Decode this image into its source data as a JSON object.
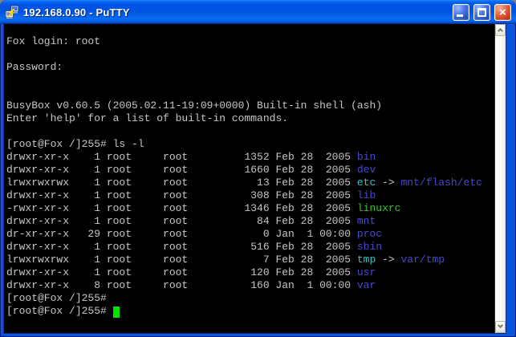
{
  "window": {
    "title": "192.168.0.90 - PuTTY",
    "icon_name": "putty-terminals-icon",
    "controls": [
      {
        "name": "minimize",
        "icon": "minimize-icon"
      },
      {
        "name": "maximize",
        "icon": "maximize-icon"
      },
      {
        "name": "close",
        "icon": "close-icon"
      }
    ]
  },
  "colors": {
    "terminal_bg": "#000000",
    "terminal_fg": "#C6C6C6",
    "directory_blue": "#4A4AC9",
    "symlink_cyan": "#40BFBF",
    "executable_green": "#3DBE3D",
    "cursor_green": "#00E400",
    "frame_blue": "#0855DD",
    "scrollbar_track": "#FBFAF7"
  },
  "scrollbar": {
    "up_icon": "chevron-up-icon",
    "down_icon": "chevron-down-icon"
  },
  "terminal": {
    "lines": [
      [
        [
          "Fox login: root",
          "fg"
        ]
      ],
      [],
      [
        [
          "Password:",
          "fg"
        ]
      ],
      [],
      [],
      [
        [
          "BusyBox v0.60.5 (2005.02.11-19:09+0000) Built-in shell (ash)",
          "fg"
        ]
      ],
      [
        [
          "Enter 'help' for a list of built-in commands.",
          "fg"
        ]
      ],
      [],
      [
        [
          "[root@Fox /]255# ls -l",
          "fg"
        ]
      ],
      [
        [
          "drwxr-xr-x    1 root     root         1352 Feb 28  2005 ",
          "fg"
        ],
        [
          "bin",
          "dir"
        ]
      ],
      [
        [
          "drwxr-xr-x    1 root     root         1660 Feb 28  2005 ",
          "fg"
        ],
        [
          "dev",
          "dir"
        ]
      ],
      [
        [
          "lrwxrwxrwx    1 root     root           13 Feb 28  2005 ",
          "fg"
        ],
        [
          "etc",
          "link"
        ],
        [
          " -> ",
          "fg"
        ],
        [
          "mnt/flash/etc",
          "dir"
        ]
      ],
      [
        [
          "drwxr-xr-x    1 root     root          308 Feb 28  2005 ",
          "fg"
        ],
        [
          "lib",
          "dir"
        ]
      ],
      [
        [
          "-rwxr-xr-x    1 root     root         1346 Feb 28  2005 ",
          "fg"
        ],
        [
          "linuxrc",
          "exec"
        ]
      ],
      [
        [
          "drwxr-xr-x    1 root     root           84 Feb 28  2005 ",
          "fg"
        ],
        [
          "mnt",
          "dir"
        ]
      ],
      [
        [
          "dr-xr-xr-x   29 root     root            0 Jan  1 00:00 ",
          "fg"
        ],
        [
          "proc",
          "dir"
        ]
      ],
      [
        [
          "drwxr-xr-x    1 root     root          516 Feb 28  2005 ",
          "fg"
        ],
        [
          "sbin",
          "dir"
        ]
      ],
      [
        [
          "lrwxrwxrwx    1 root     root            7 Feb 28  2005 ",
          "fg"
        ],
        [
          "tmp",
          "link"
        ],
        [
          " -> ",
          "fg"
        ],
        [
          "var/tmp",
          "dir"
        ]
      ],
      [
        [
          "drwxr-xr-x    1 root     root          120 Feb 28  2005 ",
          "fg"
        ],
        [
          "usr",
          "dir"
        ]
      ],
      [
        [
          "drwxr-xr-x    8 root     root          160 Jan  1 00:00 ",
          "fg"
        ],
        [
          "var",
          "dir"
        ]
      ],
      [
        [
          "[root@Fox /]255#",
          "fg"
        ]
      ],
      [
        [
          "[root@Fox /]255# ",
          "fg"
        ],
        [
          "",
          "cursor"
        ]
      ]
    ]
  }
}
